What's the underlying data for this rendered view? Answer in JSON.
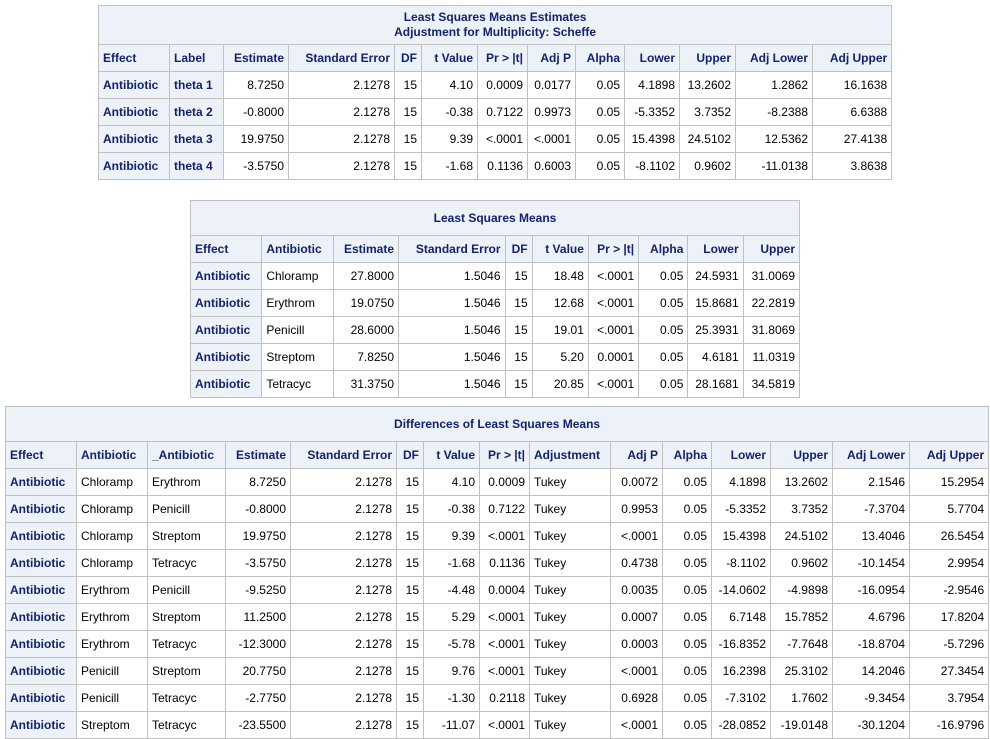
{
  "estimates": {
    "title_line1": "Least Squares Means Estimates",
    "title_line2": "Adjustment for Multiplicity: Scheffe",
    "columns": [
      "Effect",
      "Label",
      "Estimate",
      "Standard Error",
      "DF",
      "t Value",
      "Pr > |t|",
      "Adj P",
      "Alpha",
      "Lower",
      "Upper",
      "Adj Lower",
      "Adj Upper"
    ],
    "rows": [
      [
        "Antibiotic",
        "theta 1",
        "8.7250",
        "2.1278",
        "15",
        "4.10",
        "0.0009",
        "0.0177",
        "0.05",
        "4.1898",
        "13.2602",
        "1.2862",
        "16.1638"
      ],
      [
        "Antibiotic",
        "theta 2",
        "-0.8000",
        "2.1278",
        "15",
        "-0.38",
        "0.7122",
        "0.9973",
        "0.05",
        "-5.3352",
        "3.7352",
        "-8.2388",
        "6.6388"
      ],
      [
        "Antibiotic",
        "theta 3",
        "19.9750",
        "2.1278",
        "15",
        "9.39",
        "<.0001",
        "<.0001",
        "0.05",
        "15.4398",
        "24.5102",
        "12.5362",
        "27.4138"
      ],
      [
        "Antibiotic",
        "theta 4",
        "-3.5750",
        "2.1278",
        "15",
        "-1.68",
        "0.1136",
        "0.6003",
        "0.05",
        "-8.1102",
        "0.9602",
        "-11.0138",
        "3.8638"
      ]
    ]
  },
  "lsmeans": {
    "title": "Least Squares Means",
    "columns": [
      "Effect",
      "Antibiotic",
      "Estimate",
      "Standard Error",
      "DF",
      "t Value",
      "Pr > |t|",
      "Alpha",
      "Lower",
      "Upper"
    ],
    "rows": [
      [
        "Antibiotic",
        "Chloramp",
        "27.8000",
        "1.5046",
        "15",
        "18.48",
        "<.0001",
        "0.05",
        "24.5931",
        "31.0069"
      ],
      [
        "Antibiotic",
        "Erythrom",
        "19.0750",
        "1.5046",
        "15",
        "12.68",
        "<.0001",
        "0.05",
        "15.8681",
        "22.2819"
      ],
      [
        "Antibiotic",
        "Penicill",
        "28.6000",
        "1.5046",
        "15",
        "19.01",
        "<.0001",
        "0.05",
        "25.3931",
        "31.8069"
      ],
      [
        "Antibiotic",
        "Streptom",
        "7.8250",
        "1.5046",
        "15",
        "5.20",
        "0.0001",
        "0.05",
        "4.6181",
        "11.0319"
      ],
      [
        "Antibiotic",
        "Tetracyc",
        "31.3750",
        "1.5046",
        "15",
        "20.85",
        "<.0001",
        "0.05",
        "28.1681",
        "34.5819"
      ]
    ]
  },
  "differences": {
    "title": "Differences of Least Squares Means",
    "columns": [
      "Effect",
      "Antibiotic",
      "_Antibiotic",
      "Estimate",
      "Standard Error",
      "DF",
      "t Value",
      "Pr > |t|",
      "Adjustment",
      "Adj P",
      "Alpha",
      "Lower",
      "Upper",
      "Adj Lower",
      "Adj Upper"
    ],
    "rows": [
      [
        "Antibiotic",
        "Chloramp",
        "Erythrom",
        "8.7250",
        "2.1278",
        "15",
        "4.10",
        "0.0009",
        "Tukey",
        "0.0072",
        "0.05",
        "4.1898",
        "13.2602",
        "2.1546",
        "15.2954"
      ],
      [
        "Antibiotic",
        "Chloramp",
        "Penicill",
        "-0.8000",
        "2.1278",
        "15",
        "-0.38",
        "0.7122",
        "Tukey",
        "0.9953",
        "0.05",
        "-5.3352",
        "3.7352",
        "-7.3704",
        "5.7704"
      ],
      [
        "Antibiotic",
        "Chloramp",
        "Streptom",
        "19.9750",
        "2.1278",
        "15",
        "9.39",
        "<.0001",
        "Tukey",
        "<.0001",
        "0.05",
        "15.4398",
        "24.5102",
        "13.4046",
        "26.5454"
      ],
      [
        "Antibiotic",
        "Chloramp",
        "Tetracyc",
        "-3.5750",
        "2.1278",
        "15",
        "-1.68",
        "0.1136",
        "Tukey",
        "0.4738",
        "0.05",
        "-8.1102",
        "0.9602",
        "-10.1454",
        "2.9954"
      ],
      [
        "Antibiotic",
        "Erythrom",
        "Penicill",
        "-9.5250",
        "2.1278",
        "15",
        "-4.48",
        "0.0004",
        "Tukey",
        "0.0035",
        "0.05",
        "-14.0602",
        "-4.9898",
        "-16.0954",
        "-2.9546"
      ],
      [
        "Antibiotic",
        "Erythrom",
        "Streptom",
        "11.2500",
        "2.1278",
        "15",
        "5.29",
        "<.0001",
        "Tukey",
        "0.0007",
        "0.05",
        "6.7148",
        "15.7852",
        "4.6796",
        "17.8204"
      ],
      [
        "Antibiotic",
        "Erythrom",
        "Tetracyc",
        "-12.3000",
        "2.1278",
        "15",
        "-5.78",
        "<.0001",
        "Tukey",
        "0.0003",
        "0.05",
        "-16.8352",
        "-7.7648",
        "-18.8704",
        "-5.7296"
      ],
      [
        "Antibiotic",
        "Penicill",
        "Streptom",
        "20.7750",
        "2.1278",
        "15",
        "9.76",
        "<.0001",
        "Tukey",
        "<.0001",
        "0.05",
        "16.2398",
        "25.3102",
        "14.2046",
        "27.3454"
      ],
      [
        "Antibiotic",
        "Penicill",
        "Tetracyc",
        "-2.7750",
        "2.1278",
        "15",
        "-1.30",
        "0.2118",
        "Tukey",
        "0.6928",
        "0.05",
        "-7.3102",
        "1.7602",
        "-9.3454",
        "3.7954"
      ],
      [
        "Antibiotic",
        "Streptom",
        "Tetracyc",
        "-23.5500",
        "2.1278",
        "15",
        "-11.07",
        "<.0001",
        "Tukey",
        "<.0001",
        "0.05",
        "-28.0852",
        "-19.0148",
        "-30.1204",
        "-16.9796"
      ]
    ]
  }
}
